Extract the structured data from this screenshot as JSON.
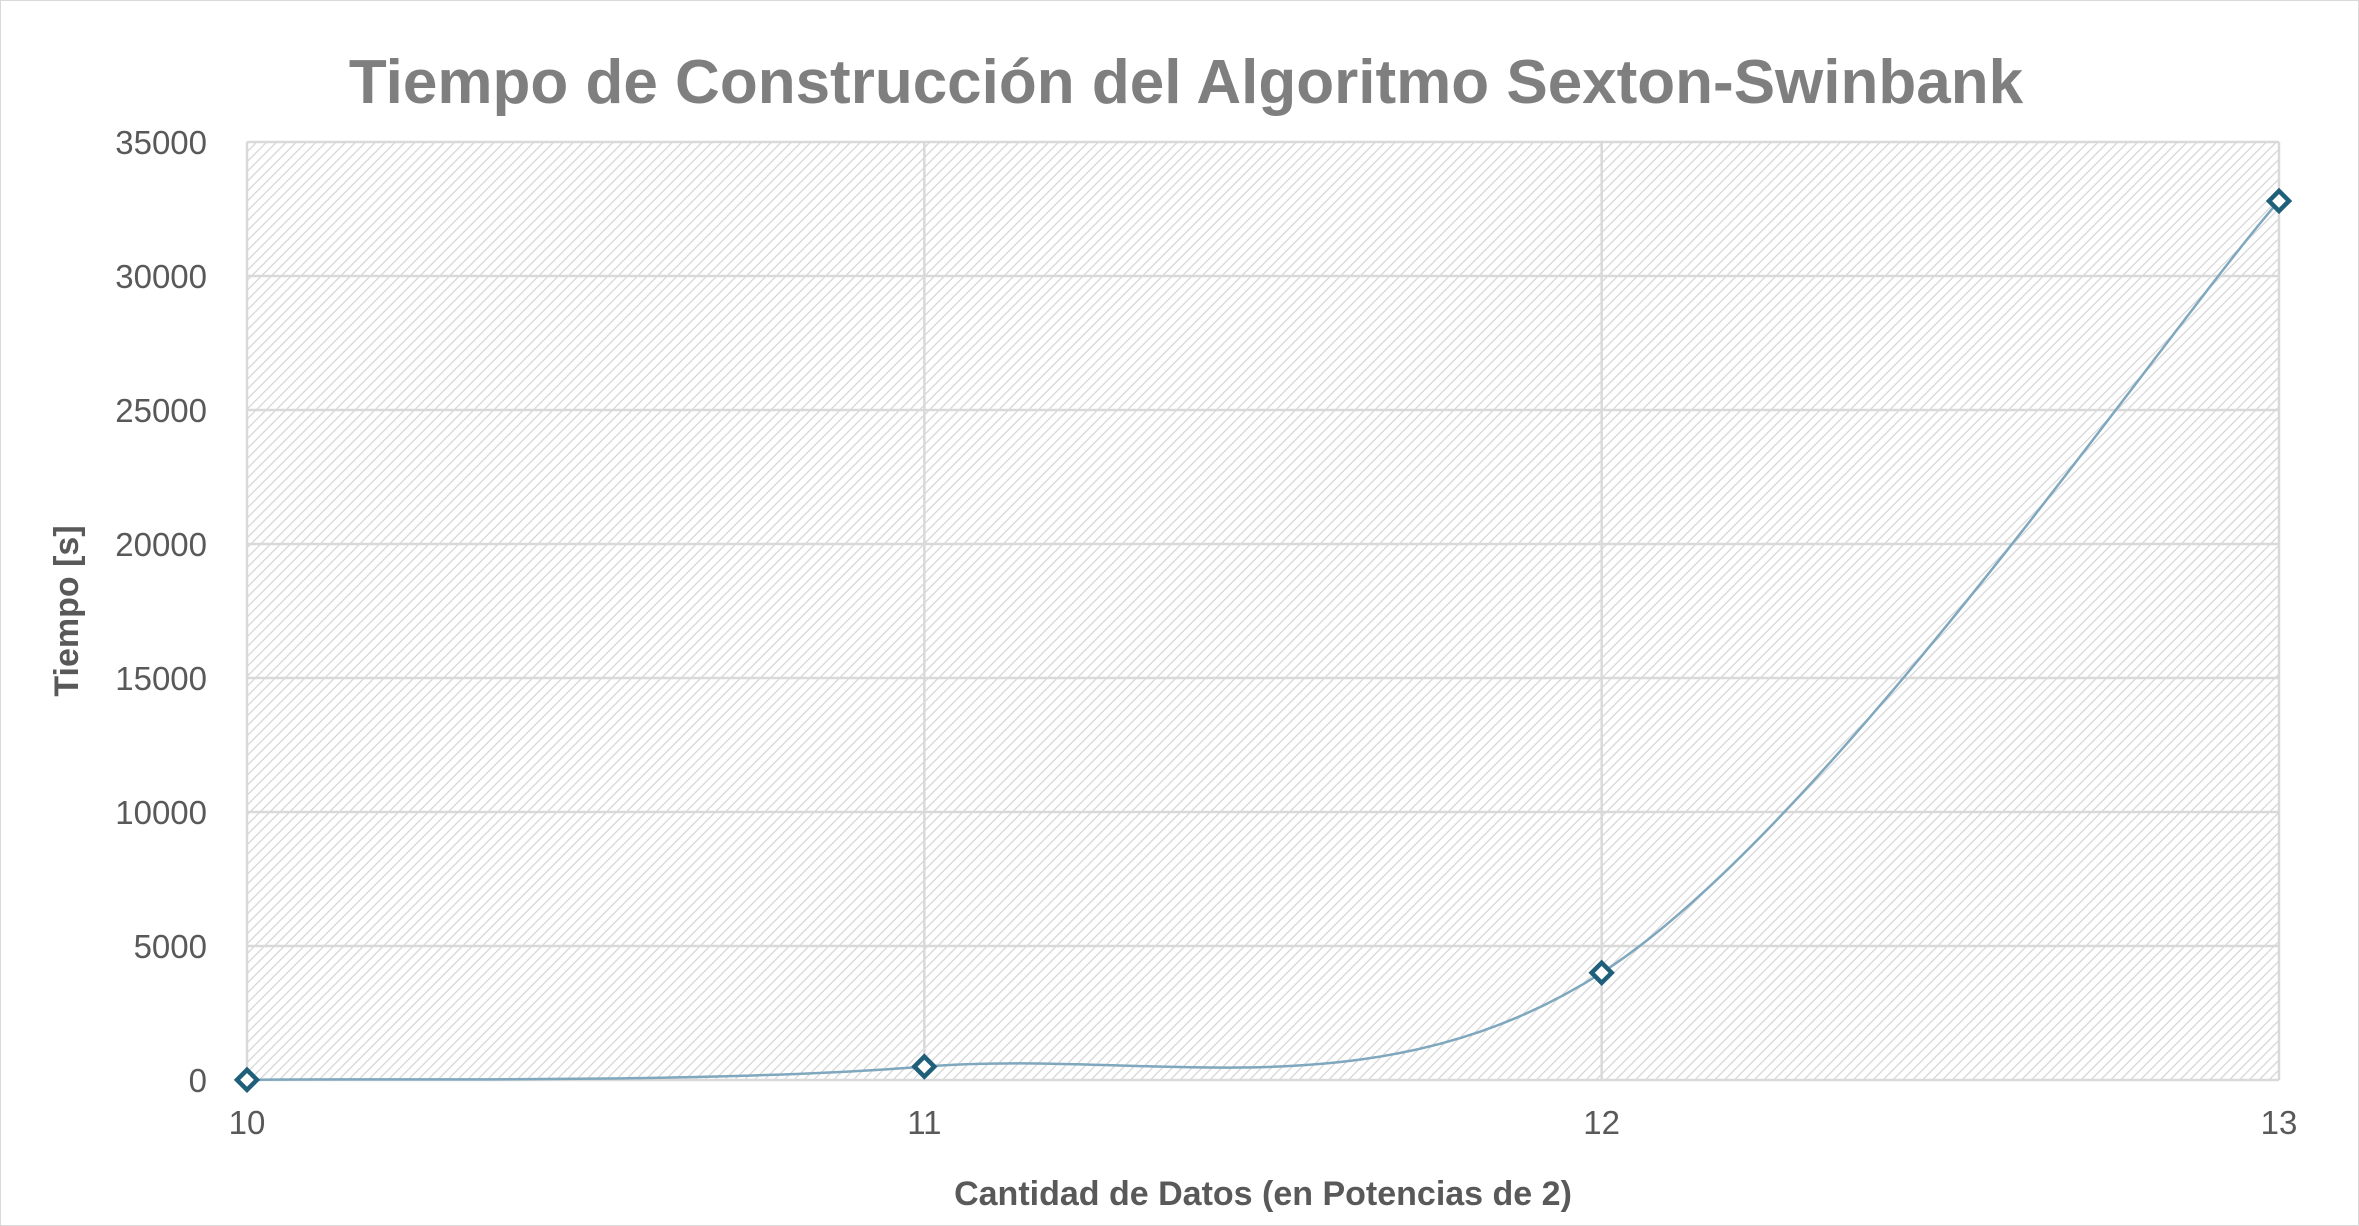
{
  "chart_data": {
    "type": "line",
    "title": "Tiempo de Construcción del Algoritmo Sexton-Swinbank",
    "xlabel": "Cantidad de Datos (en Potencias de 2)",
    "ylabel": "Tiempo [s]",
    "x": [
      10,
      11,
      12,
      13
    ],
    "x_ticks": [
      "10",
      "11",
      "12",
      "13"
    ],
    "y_ticks": [
      "0",
      "5000",
      "10000",
      "15000",
      "20000",
      "25000",
      "30000",
      "35000"
    ],
    "xlim": [
      10,
      13
    ],
    "ylim": [
      0,
      35000
    ],
    "series": [
      {
        "values": [
          5,
          500,
          4000,
          32800
        ]
      }
    ],
    "smoothed": true,
    "marker": "diamond",
    "grid": true,
    "legend": "none",
    "colors": {
      "line": "#7fa7bd",
      "marker": "#1f5f7a",
      "grid": "#d9d9d9",
      "plot_pattern": "#d4d4d4"
    }
  }
}
